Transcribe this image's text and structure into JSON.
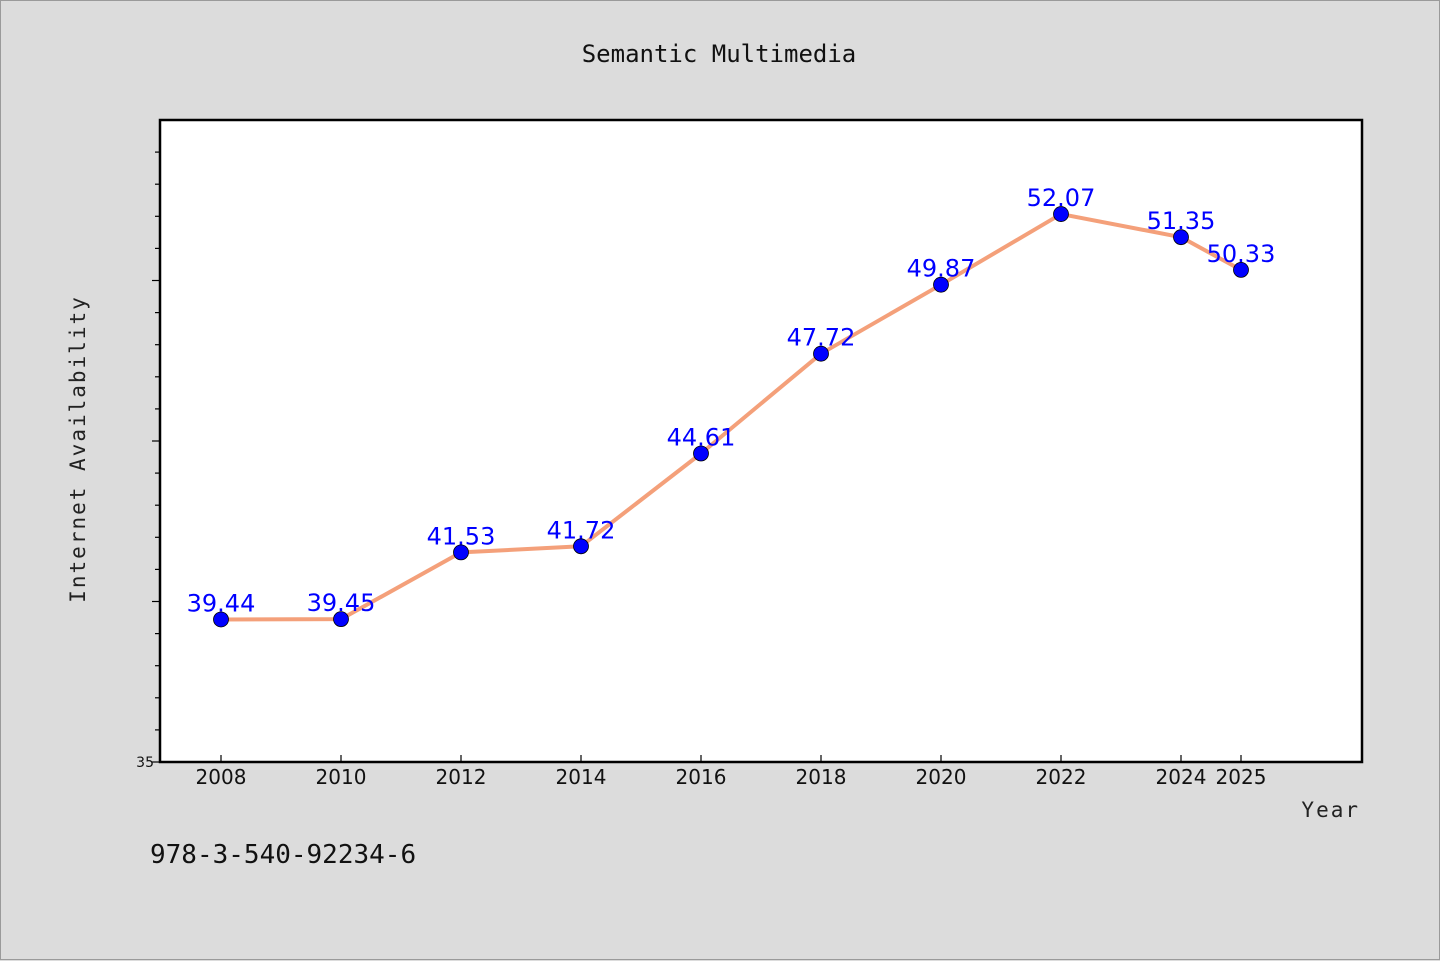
{
  "chart_data": {
    "type": "line",
    "title": "Semantic Multimedia",
    "xlabel": "Year",
    "ylabel": "Internet Availability",
    "x": [
      2008,
      2010,
      2012,
      2014,
      2016,
      2018,
      2020,
      2022,
      2024,
      2025
    ],
    "categories": [
      "2008",
      "2010",
      "2012",
      "2014",
      "2016",
      "2018",
      "2020",
      "2022",
      "2024",
      "2025"
    ],
    "series": [
      {
        "values": [
          39.44,
          39.45,
          41.53,
          41.72,
          44.61,
          47.72,
          49.87,
          52.07,
          51.35,
          50.33
        ],
        "labels": [
          "39.44",
          "39.45",
          "41.53",
          "41.72",
          "44.61",
          "47.72",
          "49.87",
          "52.07",
          "51.35",
          "50.33"
        ]
      }
    ],
    "ylim": [
      35,
      55
    ],
    "y_tick_labels": [
      "35"
    ],
    "grid": false,
    "line_color": "#f4a07a",
    "marker_color": "#0000ff",
    "label_color": "#0000ff"
  },
  "footer": {
    "isbn": "978-3-540-92234-6"
  }
}
